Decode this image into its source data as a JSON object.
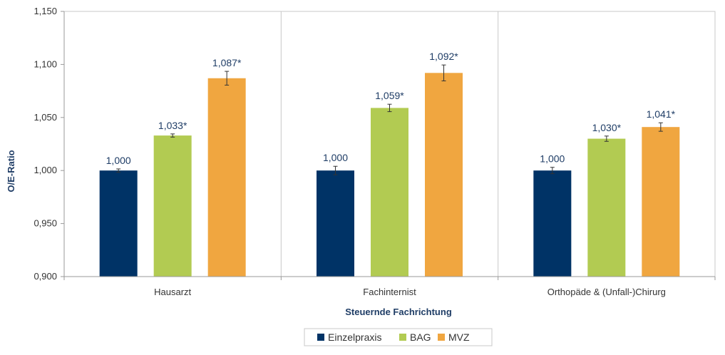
{
  "chart_data": {
    "type": "bar",
    "title": "",
    "xlabel": "Steuernde Fachrichtung",
    "ylabel": "O/E-Ratio",
    "ylim": [
      0.9,
      1.15
    ],
    "yticks": [
      0.9,
      0.95,
      1.0,
      1.05,
      1.1,
      1.15
    ],
    "ytick_labels": [
      "0,900",
      "0,950",
      "1,000",
      "1,050",
      "1,100",
      "1,150"
    ],
    "categories": [
      "Hausarzt",
      "Fachinternist",
      "Orthopäde & (Unfall-)Chirurg"
    ],
    "series": [
      {
        "name": "Einzelpraxis",
        "color": "#003366",
        "values": [
          1.0,
          1.0,
          1.0
        ],
        "errors": [
          0.0015,
          0.004,
          0.003
        ],
        "labels": [
          "1,000",
          "1,000",
          "1,000"
        ]
      },
      {
        "name": "BAG",
        "color": "#b2cb52",
        "values": [
          1.033,
          1.059,
          1.03
        ],
        "errors": [
          0.0015,
          0.0035,
          0.0025
        ],
        "labels": [
          "1,033*",
          "1,059*",
          "1,030*"
        ]
      },
      {
        "name": "MVZ",
        "color": "#f0a640",
        "values": [
          1.087,
          1.092,
          1.041
        ],
        "errors": [
          0.0065,
          0.0075,
          0.004
        ],
        "labels": [
          "1,087*",
          "1,092*",
          "1,041*"
        ]
      }
    ],
    "grid": "vertical separators between categories",
    "legend_position": "bottom-center"
  }
}
